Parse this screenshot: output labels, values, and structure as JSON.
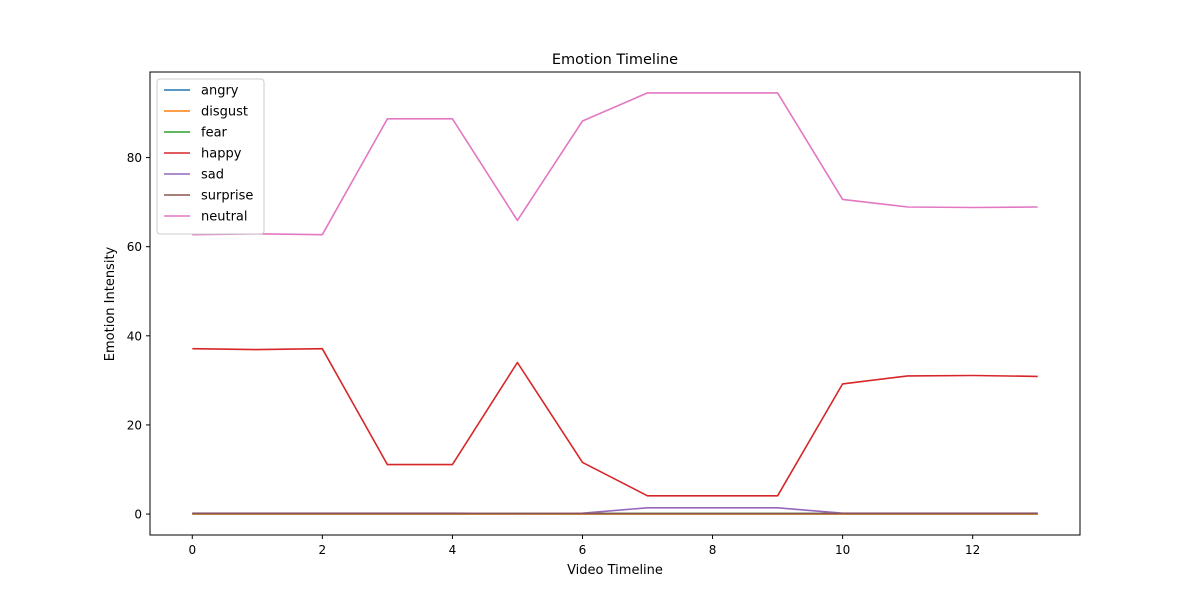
{
  "chart_data": {
    "type": "line",
    "title": "Emotion Timeline",
    "xlabel": "Video Timeline",
    "ylabel": "Emotion Intensity",
    "xlim": [
      -0.65,
      13.65
    ],
    "ylim": [
      -4.7,
      99.2
    ],
    "xticks": [
      0,
      2,
      4,
      6,
      8,
      10,
      12
    ],
    "yticks": [
      0,
      20,
      40,
      60,
      80
    ],
    "grid": false,
    "legend_position": "top-left",
    "x": [
      0,
      1,
      2,
      3,
      4,
      5,
      6,
      7,
      8,
      9,
      10,
      11,
      12,
      13
    ],
    "series": [
      {
        "name": "angry",
        "color": "#1f77b4",
        "values": [
          0.1,
          0.1,
          0.1,
          0.1,
          0.1,
          0.1,
          0.1,
          0.1,
          0.1,
          0.1,
          0.1,
          0.1,
          0.1,
          0.1
        ]
      },
      {
        "name": "disgust",
        "color": "#ff7f0e",
        "values": [
          0,
          0,
          0,
          0,
          0,
          0,
          0,
          0,
          0,
          0,
          0,
          0,
          0,
          0
        ]
      },
      {
        "name": "fear",
        "color": "#2ca02c",
        "values": [
          0.1,
          0.1,
          0.1,
          0.1,
          0.1,
          0.1,
          0.1,
          0.1,
          0.1,
          0.1,
          0.1,
          0.1,
          0.1,
          0.1
        ]
      },
      {
        "name": "happy",
        "color": "#d62728",
        "values": [
          37.1,
          36.9,
          37.1,
          11.1,
          11.1,
          34.0,
          11.6,
          4.1,
          4.1,
          4.1,
          29.2,
          31.0,
          31.1,
          30.9
        ]
      },
      {
        "name": "sad",
        "color": "#9467bd",
        "values": [
          0.2,
          0.2,
          0.2,
          0.2,
          0.2,
          0.1,
          0.2,
          1.4,
          1.4,
          1.4,
          0.2,
          0.2,
          0.2,
          0.2
        ]
      },
      {
        "name": "surprise",
        "color": "#8c564b",
        "values": [
          0.1,
          0.1,
          0.1,
          0.1,
          0.1,
          0.1,
          0.1,
          0.1,
          0.1,
          0.1,
          0.1,
          0.1,
          0.1,
          0.1
        ]
      },
      {
        "name": "neutral",
        "color": "#e377c2",
        "values": [
          62.7,
          62.9,
          62.7,
          88.7,
          88.7,
          65.9,
          88.2,
          94.5,
          94.5,
          94.5,
          70.6,
          68.9,
          68.8,
          68.9
        ]
      }
    ]
  }
}
